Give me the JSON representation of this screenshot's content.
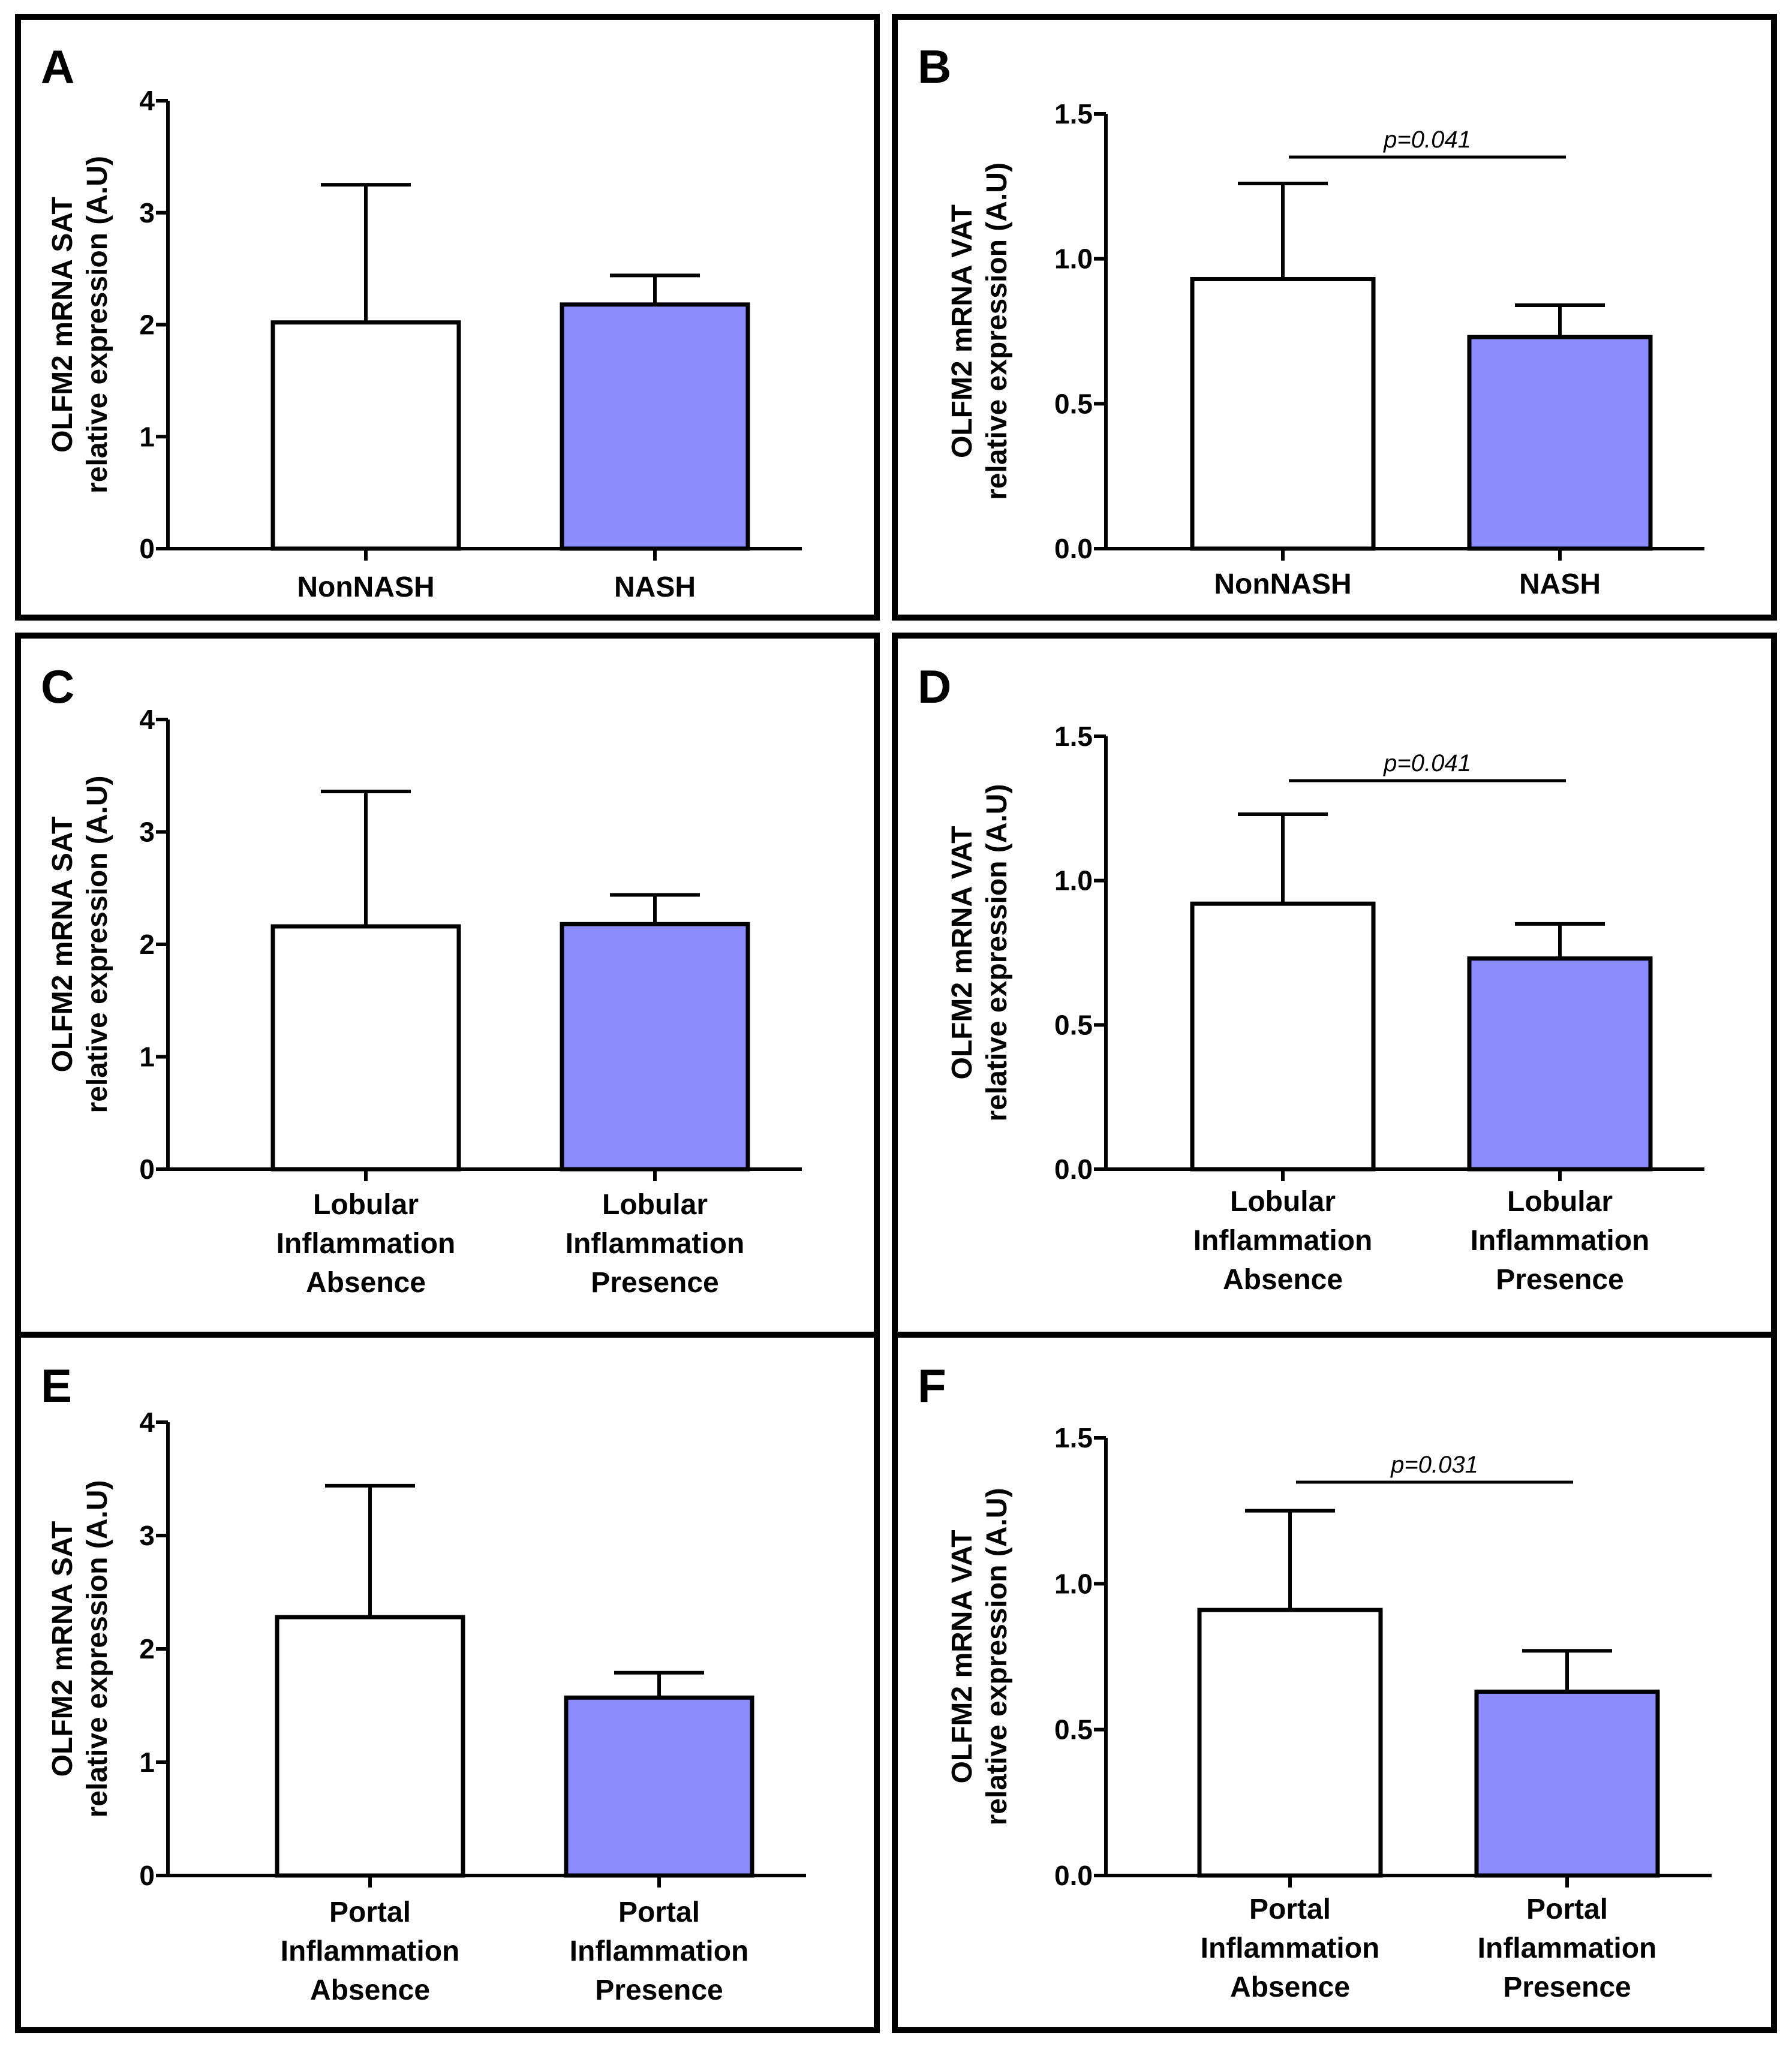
{
  "figure": {
    "colors": {
      "control": "#ffffff",
      "case": "#8c8cff",
      "stroke": "#000000"
    }
  },
  "chart_data": [
    {
      "panel": "A",
      "type": "bar",
      "ylabel": [
        "OLFM2 mRNA SAT",
        "relative expression (A.U)"
      ],
      "categories": [
        [
          "NonNASH"
        ],
        [
          "NASH"
        ]
      ],
      "values": [
        2.02,
        2.18
      ],
      "errors": [
        1.23,
        0.26
      ],
      "ylim": [
        0,
        4
      ],
      "yticks": [
        "0",
        "1",
        "2",
        "3",
        "4"
      ],
      "significance": null
    },
    {
      "panel": "B",
      "type": "bar",
      "ylabel": [
        "OLFM2 mRNA VAT",
        "relative expression (A.U)"
      ],
      "categories": [
        [
          "NonNASH"
        ],
        [
          "NASH"
        ]
      ],
      "values": [
        0.93,
        0.73
      ],
      "errors": [
        0.33,
        0.11
      ],
      "ylim": [
        0,
        1.5
      ],
      "yticks": [
        "0.0",
        "0.5",
        "1.0",
        "1.5"
      ],
      "significance": "p=0.041"
    },
    {
      "panel": "C",
      "type": "bar",
      "ylabel": [
        "OLFM2 mRNA SAT",
        "relative expression (A.U)"
      ],
      "categories": [
        [
          "Lobular",
          "Inflammation",
          "Absence"
        ],
        [
          "Lobular",
          "Inflammation",
          "Presence"
        ]
      ],
      "values": [
        2.16,
        2.18
      ],
      "errors": [
        1.2,
        0.26
      ],
      "ylim": [
        0,
        4
      ],
      "yticks": [
        "0",
        "1",
        "2",
        "3",
        "4"
      ],
      "significance": null
    },
    {
      "panel": "D",
      "type": "bar",
      "ylabel": [
        "OLFM2 mRNA VAT",
        "relative expression (A.U)"
      ],
      "categories": [
        [
          "Lobular",
          "Inflammation",
          "Absence"
        ],
        [
          "Lobular",
          "Inflammation",
          "Presence"
        ]
      ],
      "values": [
        0.92,
        0.73
      ],
      "errors": [
        0.31,
        0.12
      ],
      "ylim": [
        0,
        1.5
      ],
      "yticks": [
        "0.0",
        "0.5",
        "1.0",
        "1.5"
      ],
      "significance": "p=0.041"
    },
    {
      "panel": "E",
      "type": "bar",
      "ylabel": [
        "OLFM2 mRNA SAT",
        "relative expression (A.U)"
      ],
      "categories": [
        [
          "Portal",
          "Inflammation",
          "Absence"
        ],
        [
          "Portal",
          "Inflammation",
          "Presence"
        ]
      ],
      "values": [
        2.28,
        1.57
      ],
      "errors": [
        1.16,
        0.22
      ],
      "ylim": [
        0,
        4
      ],
      "yticks": [
        "0",
        "1",
        "2",
        "3",
        "4"
      ],
      "significance": null
    },
    {
      "panel": "F",
      "type": "bar",
      "ylabel": [
        "OLFM2 mRNA VAT",
        "relative expression (A.U)"
      ],
      "categories": [
        [
          "Portal",
          "Inflammation",
          "Absence"
        ],
        [
          "Portal",
          "Inflammation",
          "Presence"
        ]
      ],
      "values": [
        0.91,
        0.63
      ],
      "errors": [
        0.34,
        0.14
      ],
      "ylim": [
        0,
        1.5
      ],
      "yticks": [
        "0.0",
        "0.5",
        "1.0",
        "1.5"
      ],
      "significance": "p=0.031"
    }
  ]
}
